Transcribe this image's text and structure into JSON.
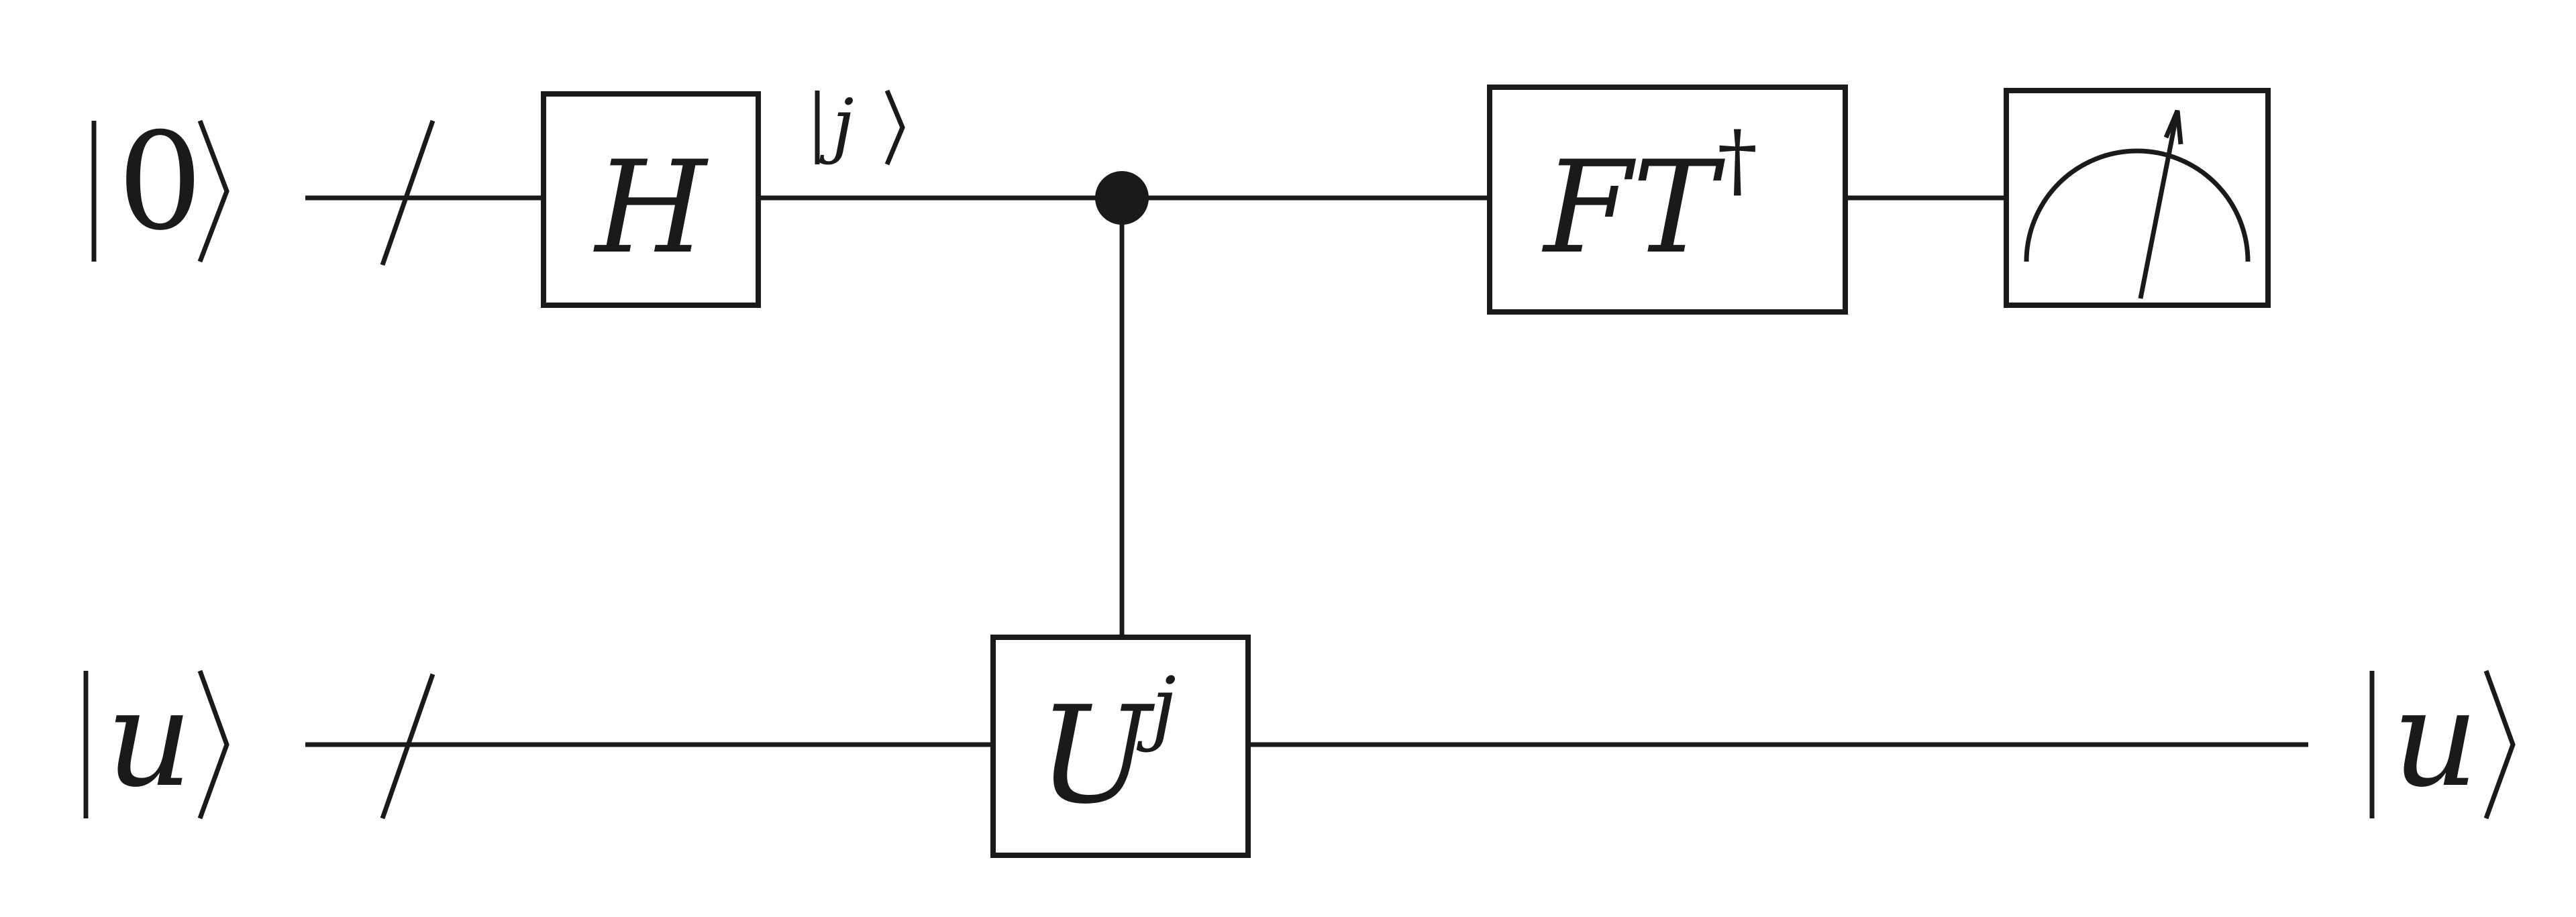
{
  "registers": {
    "top": {
      "input_state": "0"
    },
    "bottom": {
      "input_state": "u",
      "output_state": "u"
    }
  },
  "gates": {
    "hadamard": "H",
    "controlled_unitary": {
      "base": "U",
      "exponent": "j"
    },
    "inverse_qft": {
      "base": "FT",
      "superscript": "†"
    }
  },
  "intermediate_state": "j",
  "measurement": {
    "icon": "meter-icon"
  }
}
